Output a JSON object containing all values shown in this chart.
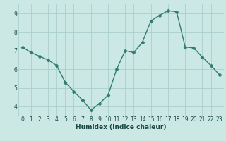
{
  "x": [
    0,
    1,
    2,
    3,
    4,
    5,
    6,
    7,
    8,
    9,
    10,
    11,
    12,
    13,
    14,
    15,
    16,
    17,
    18,
    19,
    20,
    21,
    22,
    23
  ],
  "y": [
    7.2,
    6.9,
    6.7,
    6.5,
    6.2,
    5.3,
    4.8,
    4.35,
    3.8,
    4.15,
    4.6,
    6.0,
    7.0,
    6.9,
    7.45,
    8.6,
    8.9,
    9.15,
    9.1,
    7.2,
    7.15,
    6.65,
    6.2,
    5.7
  ],
  "line_color": "#2e7d6e",
  "marker": "D",
  "markersize": 2.5,
  "linewidth": 1.0,
  "bg_color": "#cce8e5",
  "grid_color": "#aacfcc",
  "xlabel": "Humidex (Indice chaleur)",
  "xlim": [
    -0.5,
    23.5
  ],
  "ylim": [
    3.5,
    9.5
  ],
  "yticks": [
    4,
    5,
    6,
    7,
    8,
    9
  ],
  "xticks": [
    0,
    1,
    2,
    3,
    4,
    5,
    6,
    7,
    8,
    9,
    10,
    11,
    12,
    13,
    14,
    15,
    16,
    17,
    18,
    19,
    20,
    21,
    22,
    23
  ],
  "xlabel_fontsize": 6.5,
  "tick_fontsize": 5.5,
  "label_color": "#1a4a44"
}
